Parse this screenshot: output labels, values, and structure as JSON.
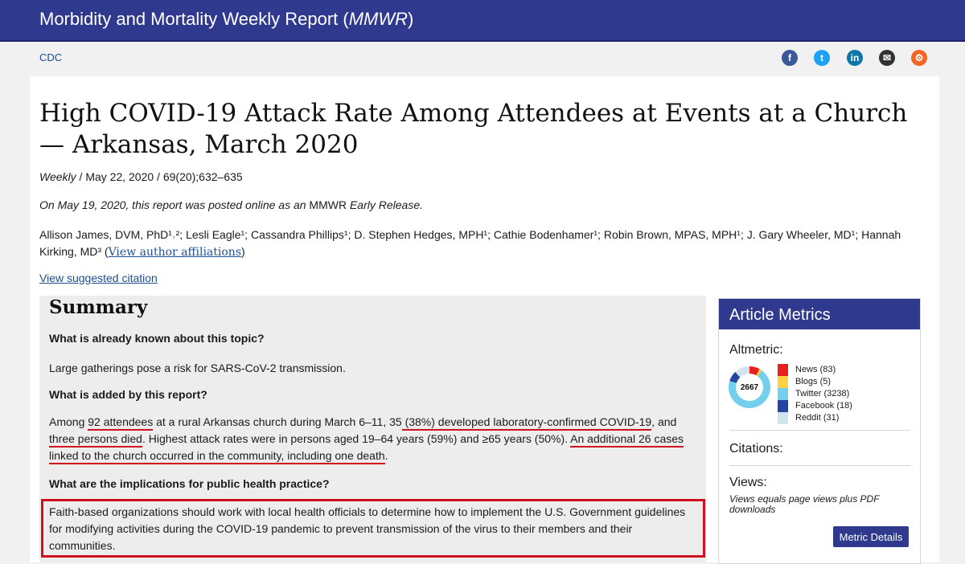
{
  "header": {
    "title_main": "Morbidity and Mortality Weekly Report (",
    "title_abbr": "MMWR",
    "title_end": ")"
  },
  "subnav": {
    "cdc_link": "CDC"
  },
  "social": [
    {
      "name": "facebook-icon",
      "glyph": "f",
      "color": "#3b5998"
    },
    {
      "name": "twitter-icon",
      "glyph": "t",
      "color": "#1da1f2"
    },
    {
      "name": "linkedin-icon",
      "glyph": "in",
      "color": "#0e76a8"
    },
    {
      "name": "email-icon",
      "glyph": "✉",
      "color": "#333333"
    },
    {
      "name": "syndicate-icon",
      "glyph": "⚙",
      "color": "#f26522"
    }
  ],
  "article": {
    "title": "High COVID-19 Attack Rate Among Attendees at Events at a Church — Arkansas, March 2020",
    "weekly": "Weekly",
    "meta_rest": " / May 22, 2020 / 69(20);632–635",
    "release_pre": "On May 19, 2020, this report was posted online as an ",
    "release_mmwr": "MMWR",
    "release_post": " Early Release.",
    "authors": "Allison James, DVM, PhD¹˒²; Lesli Eagle¹; Cassandra Phillips¹; D. Stephen Hedges, MPH¹; Cathie Bodenhamer¹; Robin Brown, MPAS, MPH¹; J. Gary Wheeler, MD¹; Hannah Kirking, MD³ (",
    "affiliations_link": "View author affiliations",
    "authors_close": ")",
    "citation_link": "View suggested citation"
  },
  "summary": {
    "heading": "Summary",
    "q1": "What is already known about this topic?",
    "a1": "Large gatherings pose a risk for SARS-CoV-2 transmission.",
    "q2": "What is added by this report?",
    "a2_1": "Among ",
    "a2_2": "92 attendees",
    "a2_3": " at a rural Arkansas church during March 6–11, 35",
    "a2_4": " (38%) developed laboratory-confirmed COVID-19",
    "a2_5": ", and ",
    "a2_6": "three persons died",
    "a2_7": ". Highest attack rates were in persons aged 19–64 years (59%) and ≥65 years (50%). ",
    "a2_8": "An additional 26 cases linked to the church occurred in the community, including one death",
    "a2_9": ".",
    "q3": "What are the implications for public health practice?",
    "a3": "Faith-based organizations should work with local health officials to determine how to implement the U.S. Government guidelines for modifying activities during the COVID-19 pandemic to prevent transmission of the virus to their members and their communities."
  },
  "metrics": {
    "heading": "Article Metrics",
    "altmetric_label": "Altmetric:",
    "score": "2667",
    "legend": [
      {
        "label": "News (83)",
        "color": "#e8201d"
      },
      {
        "label": "Blogs (5)",
        "color": "#ffd140"
      },
      {
        "label": "Twitter (3238)",
        "color": "#74cfed"
      },
      {
        "label": "Facebook (18)",
        "color": "#2445a2"
      },
      {
        "label": "Reddit (31)",
        "color": "#d1e3ed"
      }
    ],
    "citations_label": "Citations:",
    "views_label": "Views:",
    "views_note": "Views equals page views plus PDF downloads",
    "button": "Metric Details"
  }
}
